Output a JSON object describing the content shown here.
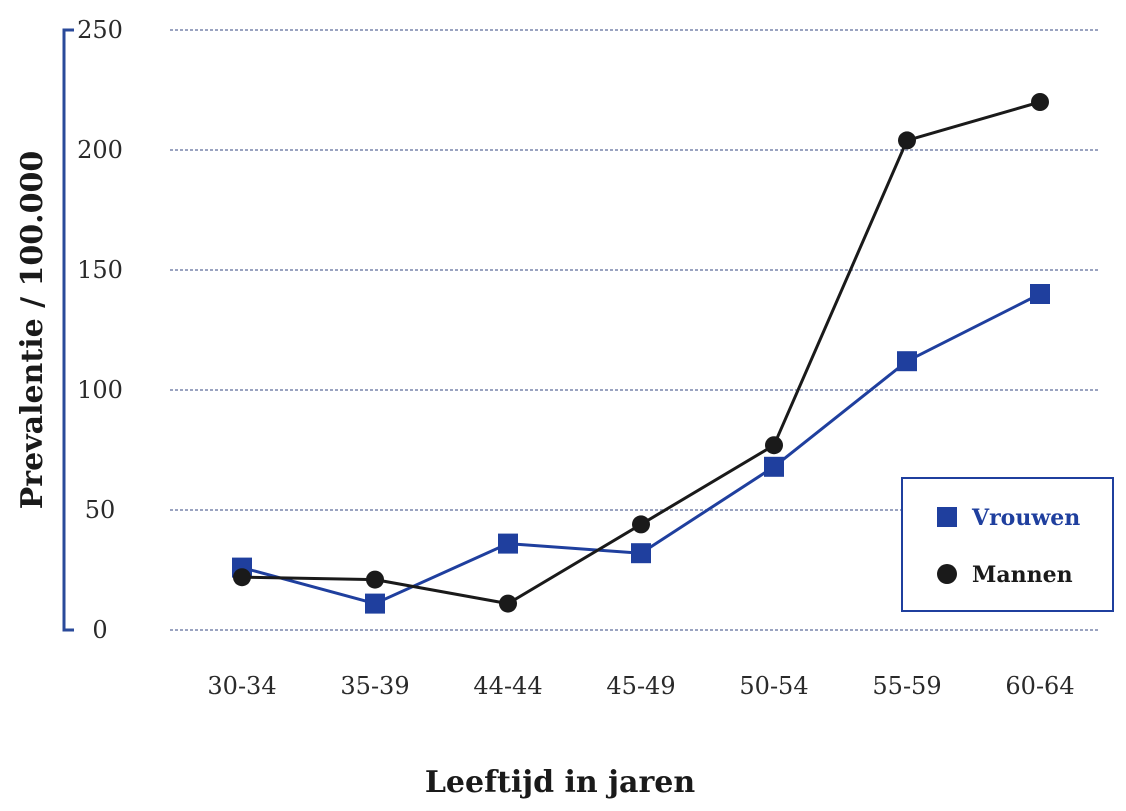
{
  "chart_data": {
    "type": "line",
    "title": "",
    "xlabel": "Leeftijd in jaren",
    "ylabel": "Prevalentie / 100.000",
    "categories": [
      "30-34",
      "35-39",
      "44-44",
      "45-49",
      "50-54",
      "55-59",
      "60-64"
    ],
    "yticks": [
      "0",
      "50",
      "100",
      "150",
      "200",
      "250"
    ],
    "ylim": [
      0,
      250
    ],
    "grid": true,
    "legend_position": "bottom-right",
    "series": [
      {
        "name": "Vrouwen",
        "values": [
          26,
          11,
          36,
          32,
          68,
          112,
          140
        ],
        "color": "#1f3f9e",
        "marker": "square"
      },
      {
        "name": "Mannen",
        "values": [
          22,
          21,
          11,
          44,
          77,
          204,
          220
        ],
        "color": "#1a1a1a",
        "marker": "circle"
      }
    ],
    "colors": {
      "axis": "#2a4a9a",
      "grid": "#9aa3c0"
    }
  }
}
